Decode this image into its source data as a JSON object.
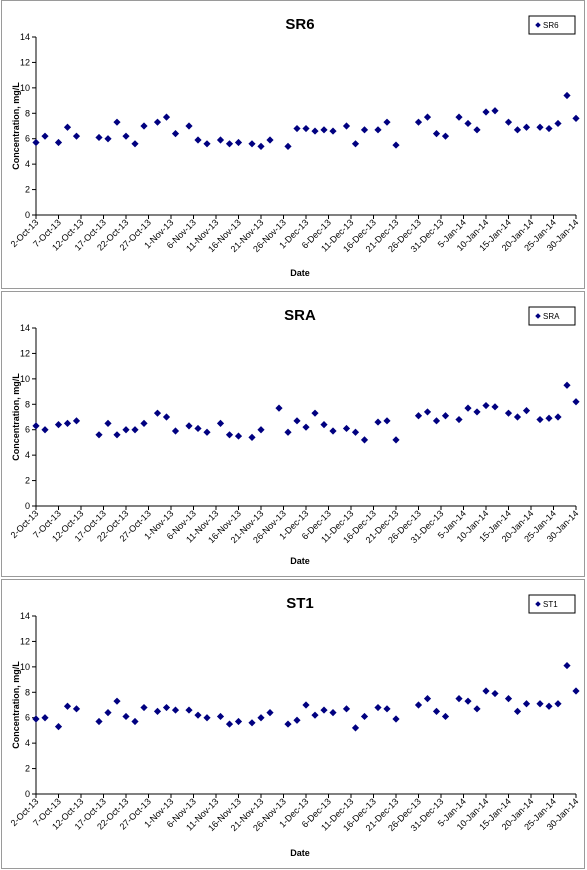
{
  "chart_data": [
    {
      "type": "scatter",
      "title": "SR6",
      "xlabel": "Date",
      "ylabel": "Concentration, mg/L",
      "ylim": [
        0,
        14
      ],
      "yticks": [
        0,
        2,
        4,
        6,
        8,
        10,
        12,
        14
      ],
      "xlim": [
        "2013-10-02",
        "2014-01-30"
      ],
      "xticklabels": [
        "2-Oct-13",
        "7-Oct-13",
        "12-Oct-13",
        "17-Oct-13",
        "22-Oct-13",
        "27-Oct-13",
        "1-Nov-13",
        "6-Nov-13",
        "11-Nov-13",
        "16-Nov-13",
        "21-Nov-13",
        "26-Nov-13",
        "1-Dec-13",
        "6-Dec-13",
        "11-Dec-13",
        "16-Dec-13",
        "21-Dec-13",
        "26-Dec-13",
        "31-Dec-13",
        "5-Jan-14",
        "10-Jan-14",
        "15-Jan-14",
        "20-Jan-14",
        "25-Jan-14",
        "30-Jan-14"
      ],
      "grid": false,
      "legend": "top-right",
      "color": "#000080",
      "series": [
        {
          "name": "SR6",
          "x": [
            "2013-10-02",
            "2013-10-04",
            "2013-10-07",
            "2013-10-09",
            "2013-10-11",
            "2013-10-16",
            "2013-10-18",
            "2013-10-20",
            "2013-10-22",
            "2013-10-24",
            "2013-10-26",
            "2013-10-29",
            "2013-10-31",
            "2013-11-02",
            "2013-11-05",
            "2013-11-07",
            "2013-11-09",
            "2013-11-12",
            "2013-11-14",
            "2013-11-16",
            "2013-11-19",
            "2013-11-21",
            "2013-11-23",
            "2013-11-27",
            "2013-11-29",
            "2013-12-01",
            "2013-12-03",
            "2013-12-05",
            "2013-12-07",
            "2013-12-10",
            "2013-12-12",
            "2013-12-14",
            "2013-12-17",
            "2013-12-19",
            "2013-12-21",
            "2013-12-26",
            "2013-12-28",
            "2013-12-30",
            "2014-01-01",
            "2014-01-04",
            "2014-01-06",
            "2014-01-08",
            "2014-01-10",
            "2014-01-12",
            "2014-01-15",
            "2014-01-17",
            "2014-01-19",
            "2014-01-22",
            "2014-01-24",
            "2014-01-26",
            "2014-01-28",
            "2014-01-30"
          ],
          "y": [
            5.7,
            6.2,
            5.7,
            6.9,
            6.2,
            6.1,
            6.0,
            7.3,
            6.2,
            5.6,
            7.0,
            7.3,
            7.7,
            6.4,
            7.0,
            5.9,
            5.6,
            5.9,
            5.6,
            5.7,
            5.6,
            5.4,
            5.9,
            5.4,
            6.8,
            6.8,
            6.6,
            6.7,
            6.6,
            7.0,
            5.6,
            6.7,
            6.7,
            7.3,
            5.5,
            7.3,
            7.7,
            6.4,
            6.2,
            7.7,
            7.2,
            6.7,
            8.1,
            8.2,
            7.3,
            6.7,
            6.9,
            6.9,
            6.8,
            7.2,
            9.4,
            7.6
          ]
        }
      ]
    },
    {
      "type": "scatter",
      "title": "SRA",
      "xlabel": "Date",
      "ylabel": "Concentration, mg/L",
      "ylim": [
        0,
        14
      ],
      "yticks": [
        0,
        2,
        4,
        6,
        8,
        10,
        12,
        14
      ],
      "xlim": [
        "2013-10-02",
        "2014-01-30"
      ],
      "xticklabels": [
        "2-Oct-13",
        "7-Oct-13",
        "12-Oct-13",
        "17-Oct-13",
        "22-Oct-13",
        "27-Oct-13",
        "1-Nov-13",
        "6-Nov-13",
        "11-Nov-13",
        "16-Nov-13",
        "21-Nov-13",
        "26-Nov-13",
        "1-Dec-13",
        "6-Dec-13",
        "11-Dec-13",
        "16-Dec-13",
        "21-Dec-13",
        "26-Dec-13",
        "31-Dec-13",
        "5-Jan-14",
        "10-Jan-14",
        "15-Jan-14",
        "20-Jan-14",
        "25-Jan-14",
        "30-Jan-14"
      ],
      "grid": false,
      "legend": "top-right",
      "color": "#000080",
      "series": [
        {
          "name": "SRA",
          "x": [
            "2013-10-02",
            "2013-10-04",
            "2013-10-07",
            "2013-10-09",
            "2013-10-11",
            "2013-10-16",
            "2013-10-18",
            "2013-10-20",
            "2013-10-22",
            "2013-10-24",
            "2013-10-26",
            "2013-10-29",
            "2013-10-31",
            "2013-11-02",
            "2013-11-05",
            "2013-11-07",
            "2013-11-09",
            "2013-11-12",
            "2013-11-14",
            "2013-11-16",
            "2013-11-19",
            "2013-11-21",
            "2013-11-25",
            "2013-11-27",
            "2013-11-29",
            "2013-12-01",
            "2013-12-03",
            "2013-12-05",
            "2013-12-07",
            "2013-12-10",
            "2013-12-12",
            "2013-12-14",
            "2013-12-17",
            "2013-12-19",
            "2013-12-21",
            "2013-12-26",
            "2013-12-28",
            "2013-12-30",
            "2014-01-01",
            "2014-01-04",
            "2014-01-06",
            "2014-01-08",
            "2014-01-10",
            "2014-01-12",
            "2014-01-15",
            "2014-01-17",
            "2014-01-19",
            "2014-01-22",
            "2014-01-24",
            "2014-01-26",
            "2014-01-28",
            "2014-01-30"
          ],
          "y": [
            6.3,
            6.0,
            6.4,
            6.5,
            6.7,
            5.6,
            6.5,
            5.6,
            6.0,
            6.0,
            6.5,
            7.3,
            7.0,
            5.9,
            6.3,
            6.1,
            5.8,
            6.5,
            5.6,
            5.5,
            5.4,
            6.0,
            7.7,
            5.8,
            6.7,
            6.2,
            7.3,
            6.4,
            5.9,
            6.1,
            5.8,
            5.2,
            6.6,
            6.7,
            5.2,
            7.1,
            7.4,
            6.7,
            7.1,
            6.8,
            7.7,
            7.4,
            7.9,
            7.8,
            7.3,
            7.0,
            7.5,
            6.8,
            6.9,
            7.0,
            9.5,
            8.2
          ]
        }
      ]
    },
    {
      "type": "scatter",
      "title": "ST1",
      "xlabel": "Date",
      "ylabel": "Concentration, mg/L",
      "ylim": [
        0,
        14
      ],
      "yticks": [
        0,
        2,
        4,
        6,
        8,
        10,
        12,
        14
      ],
      "xlim": [
        "2013-10-02",
        "2014-01-30"
      ],
      "xticklabels": [
        "2-Oct-13",
        "7-Oct-13",
        "12-Oct-13",
        "17-Oct-13",
        "22-Oct-13",
        "27-Oct-13",
        "1-Nov-13",
        "6-Nov-13",
        "11-Nov-13",
        "16-Nov-13",
        "21-Nov-13",
        "26-Nov-13",
        "1-Dec-13",
        "6-Dec-13",
        "11-Dec-13",
        "16-Dec-13",
        "21-Dec-13",
        "26-Dec-13",
        "31-Dec-13",
        "5-Jan-14",
        "10-Jan-14",
        "15-Jan-14",
        "20-Jan-14",
        "25-Jan-14",
        "30-Jan-14"
      ],
      "grid": false,
      "legend": "top-right",
      "color": "#000080",
      "series": [
        {
          "name": "ST1",
          "x": [
            "2013-10-02",
            "2013-10-04",
            "2013-10-07",
            "2013-10-09",
            "2013-10-11",
            "2013-10-16",
            "2013-10-18",
            "2013-10-20",
            "2013-10-22",
            "2013-10-24",
            "2013-10-26",
            "2013-10-29",
            "2013-10-31",
            "2013-11-02",
            "2013-11-05",
            "2013-11-07",
            "2013-11-09",
            "2013-11-12",
            "2013-11-14",
            "2013-11-16",
            "2013-11-19",
            "2013-11-21",
            "2013-11-23",
            "2013-11-27",
            "2013-11-29",
            "2013-12-01",
            "2013-12-03",
            "2013-12-05",
            "2013-12-07",
            "2013-12-10",
            "2013-12-12",
            "2013-12-14",
            "2013-12-17",
            "2013-12-19",
            "2013-12-21",
            "2013-12-26",
            "2013-12-28",
            "2013-12-30",
            "2014-01-01",
            "2014-01-04",
            "2014-01-06",
            "2014-01-08",
            "2014-01-10",
            "2014-01-12",
            "2014-01-15",
            "2014-01-17",
            "2014-01-19",
            "2014-01-22",
            "2014-01-24",
            "2014-01-26",
            "2014-01-28",
            "2014-01-30"
          ],
          "y": [
            5.9,
            6.0,
            5.3,
            6.9,
            6.7,
            5.7,
            6.4,
            7.3,
            6.1,
            5.7,
            6.8,
            6.5,
            6.8,
            6.6,
            6.6,
            6.2,
            6.0,
            6.1,
            5.5,
            5.7,
            5.6,
            6.0,
            6.4,
            5.5,
            5.8,
            7.0,
            6.2,
            6.6,
            6.4,
            6.7,
            5.2,
            6.1,
            6.8,
            6.7,
            5.9,
            7.0,
            7.5,
            6.5,
            6.1,
            7.5,
            7.3,
            6.7,
            8.1,
            7.9,
            7.5,
            6.5,
            7.1,
            7.1,
            6.9,
            7.1,
            10.1,
            8.1
          ]
        }
      ]
    }
  ]
}
